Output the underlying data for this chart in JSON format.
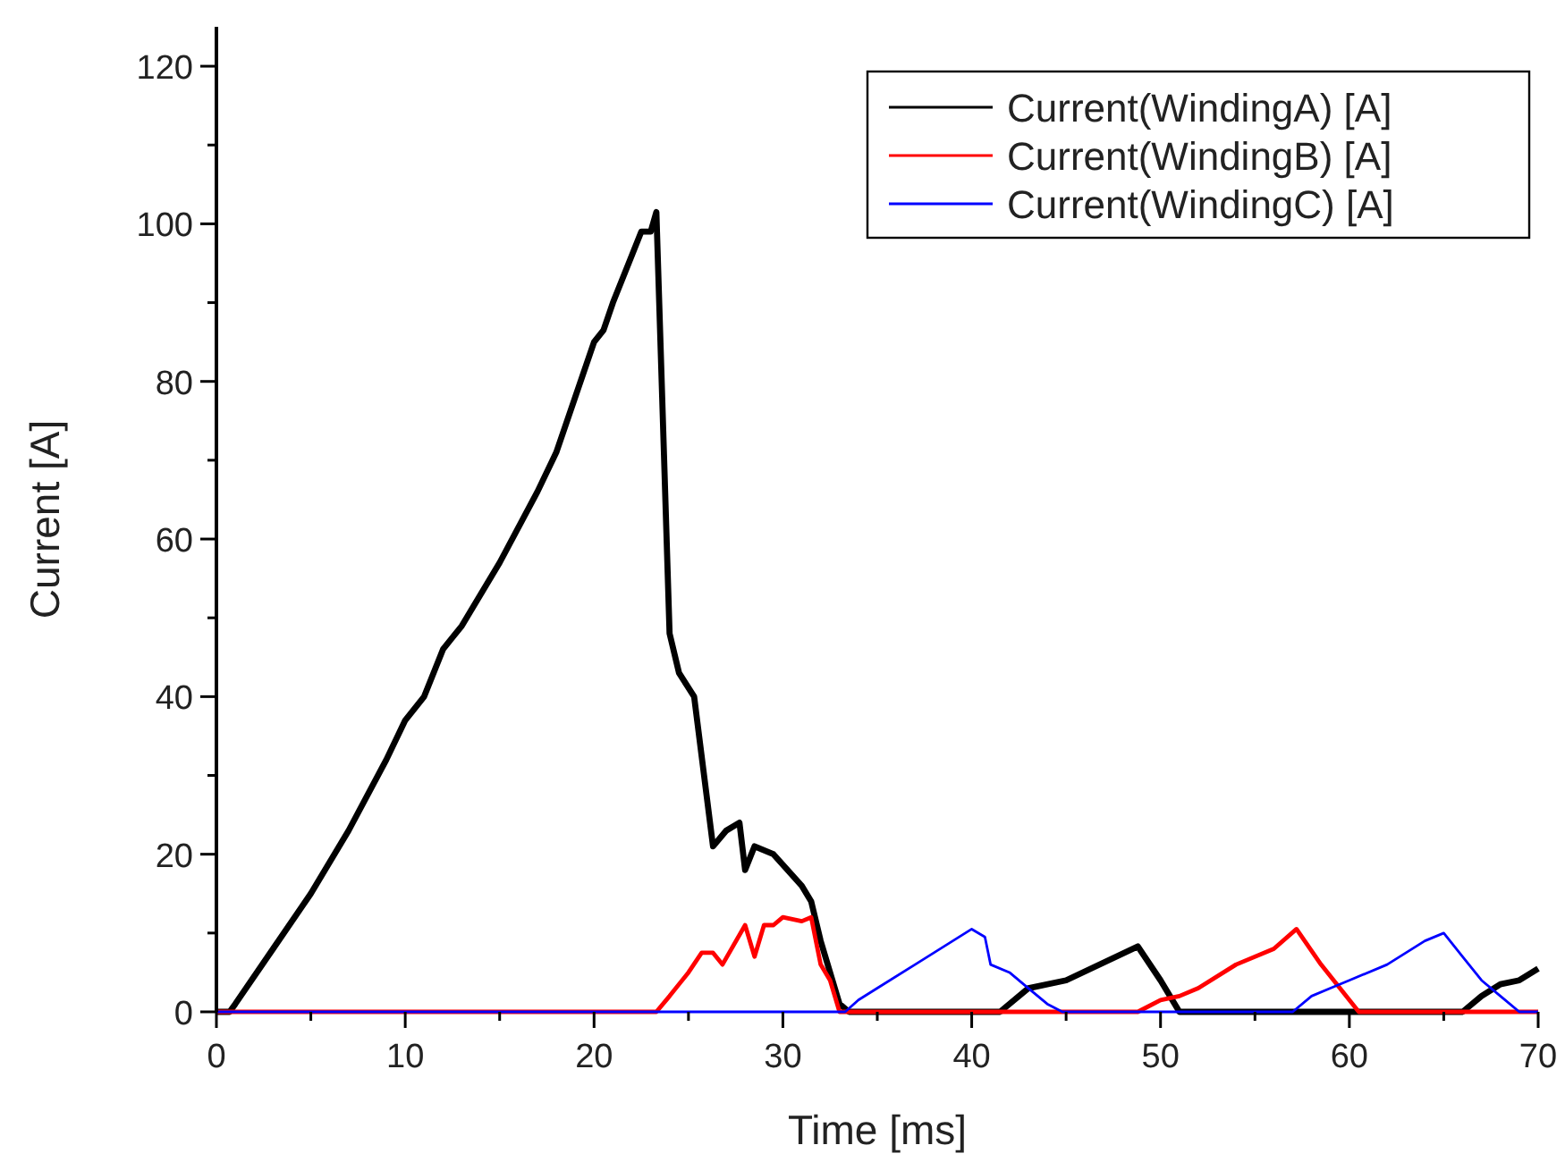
{
  "chart_data": {
    "type": "line",
    "xlabel": "Time [ms]",
    "ylabel": "Current [A]",
    "xlim": [
      0,
      70
    ],
    "ylim": [
      0,
      125
    ],
    "xticks": [
      0,
      {
        "value": 5,
        "label": null
      },
      10,
      {
        "value": 15,
        "label": null
      },
      20,
      {
        "value": 25,
        "label": null
      },
      30,
      {
        "value": 35,
        "label": null
      },
      40,
      {
        "value": 45,
        "label": null
      },
      50,
      {
        "value": 55,
        "label": null
      },
      60,
      {
        "value": 65,
        "label": null
      },
      70
    ],
    "yticks": [
      0,
      {
        "value": 10,
        "label": null
      },
      20,
      {
        "value": 30,
        "label": null
      },
      40,
      {
        "value": 50,
        "label": null
      },
      60,
      {
        "value": 70,
        "label": null
      },
      80,
      {
        "value": 90,
        "label": null
      },
      100,
      {
        "value": 110,
        "label": null
      },
      120
    ],
    "grid": false,
    "legend": "top right",
    "marker": "none",
    "line_style": "solid",
    "series": [
      {
        "name": "Current(WindingA) [A]",
        "color": "#000000",
        "x": [
          0,
          0.7,
          1,
          3,
          5,
          7,
          9,
          10,
          11,
          12,
          13,
          15,
          17,
          18,
          19,
          20,
          20.5,
          21,
          22,
          22.5,
          23,
          23.3,
          24,
          24.5,
          25.3,
          26.3,
          27,
          27.7,
          28,
          28.5,
          29.5,
          31,
          31.5,
          32,
          33,
          33.5,
          41.5,
          43,
          45,
          48.8,
          50,
          51,
          66,
          67,
          68,
          69,
          70
        ],
        "values": [
          0,
          0,
          1,
          8,
          15,
          23,
          32,
          37,
          40,
          46,
          49,
          57,
          66,
          71,
          78,
          85,
          86.5,
          90,
          96,
          99,
          99,
          101.5,
          48,
          43,
          40,
          21,
          23,
          24,
          18,
          21,
          20,
          16,
          14,
          9,
          1,
          0,
          0,
          3,
          4,
          8.3,
          4,
          0,
          0,
          2,
          3.5,
          4,
          5.5
        ]
      },
      {
        "name": "Current(WindingB) [A]",
        "color": "#ff0000",
        "x": [
          0,
          23.3,
          24,
          25,
          25.7,
          26.3,
          26.8,
          28,
          28.5,
          29,
          29.5,
          30,
          31,
          31.5,
          32,
          32.5,
          33,
          48.8,
          50,
          51,
          52,
          54,
          56,
          57.2,
          58.5,
          60.5,
          70
        ],
        "values": [
          0,
          0,
          2,
          5,
          7.5,
          7.5,
          6,
          11,
          7,
          11,
          11,
          12,
          11.5,
          12,
          6,
          4,
          0,
          0,
          1.5,
          2,
          3,
          6,
          8,
          10.5,
          6,
          0,
          0
        ]
      },
      {
        "name": "Current(WindingC) [A]",
        "color": "#0000ff",
        "x": [
          0,
          33.3,
          34,
          35,
          37,
          39,
          40,
          40.7,
          41,
          42,
          43,
          44,
          44.8,
          57,
          58,
          59,
          60,
          62,
          64,
          65,
          66,
          67,
          68,
          69,
          70
        ],
        "values": [
          0,
          0,
          1.5,
          3,
          6,
          9,
          10.5,
          9.5,
          6,
          5,
          3,
          1,
          0,
          0,
          2,
          3,
          4,
          6,
          9,
          10,
          7,
          4,
          2,
          0,
          0
        ]
      }
    ]
  }
}
